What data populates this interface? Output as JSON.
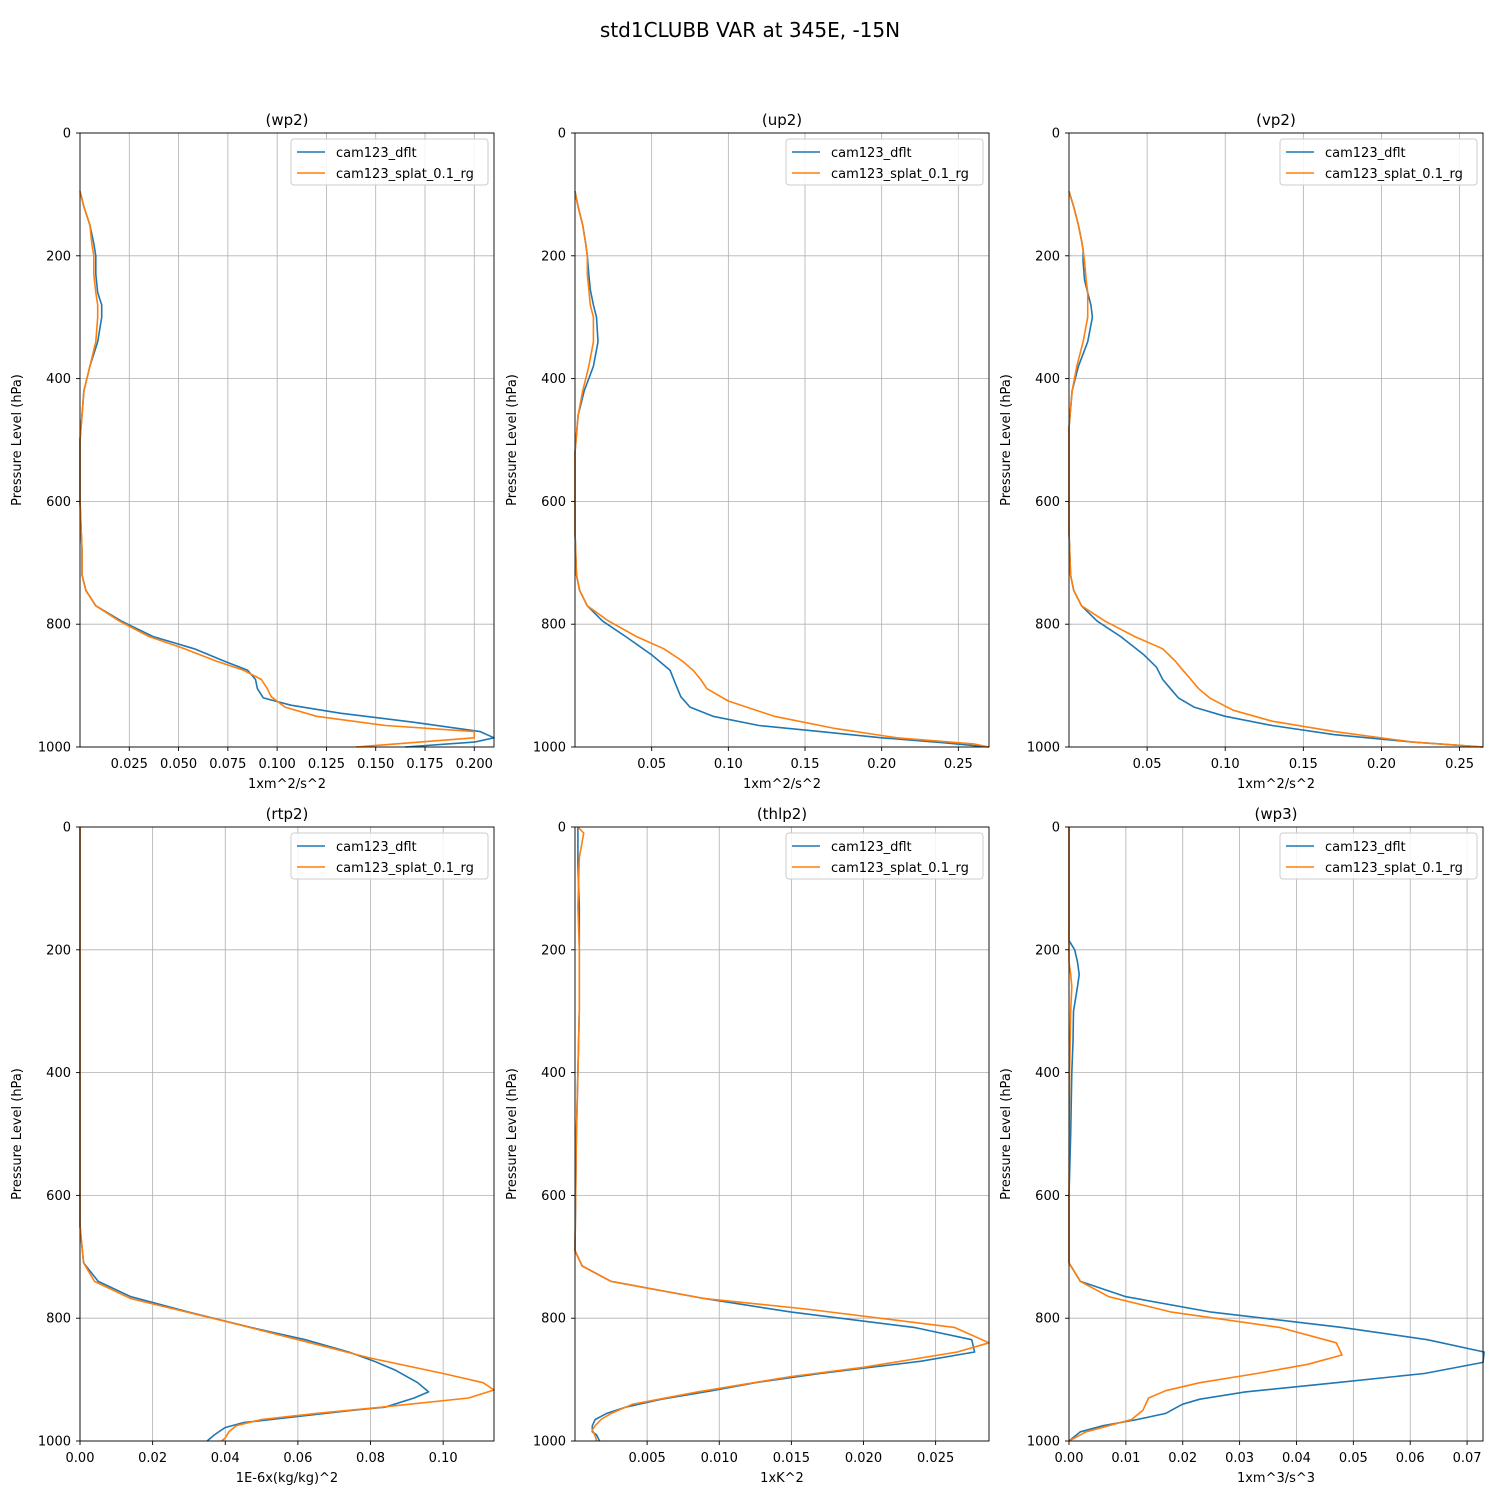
{
  "figure_title": "std1CLUBB VAR at 345E, -15N",
  "legend_labels": [
    "cam123_dflt",
    "cam123_splat_0.1_rg"
  ],
  "colors": {
    "cam123_dflt": "#1f77b4",
    "cam123_splat_0.1_rg": "#ff7f0e",
    "grid": "#b0b0b0"
  },
  "chart_data": [
    {
      "type": "line",
      "title": "(wp2)",
      "xlabel": "1xm^2/s^2",
      "ylabel": "Pressure Level (hPa)",
      "xlim": [
        0.0,
        0.21
      ],
      "ylim": [
        1000,
        0
      ],
      "grid": true,
      "legend": "upper right",
      "xticks": [
        0.025,
        0.05,
        0.075,
        0.1,
        0.125,
        0.15,
        0.175,
        0.2
      ],
      "xtick_labels": [
        "0.025",
        "0.050",
        "0.075",
        "0.100",
        "0.125",
        "0.150",
        "0.175",
        "0.200"
      ],
      "yticks": [
        0,
        200,
        400,
        600,
        800,
        1000
      ],
      "ytick_labels": [
        "0",
        "200",
        "400",
        "600",
        "800",
        "1000"
      ],
      "series": [
        {
          "name": "cam123_dflt",
          "x": [
            0.0,
            0.002,
            0.005,
            0.007,
            0.008,
            0.008,
            0.009,
            0.011,
            0.011,
            0.009,
            0.005,
            0.002,
            0.001,
            0.0,
            0.0,
            0.001,
            0.001,
            0.003,
            0.008,
            0.021,
            0.037,
            0.058,
            0.073,
            0.085,
            0.089,
            0.09,
            0.093,
            0.107,
            0.132,
            0.17,
            0.203,
            0.21,
            0.2,
            0.165
          ],
          "y": [
            95,
            120,
            150,
            180,
            200,
            230,
            260,
            280,
            300,
            340,
            380,
            420,
            460,
            500,
            600,
            680,
            720,
            745,
            770,
            795,
            820,
            840,
            860,
            875,
            890,
            905,
            920,
            932,
            945,
            960,
            975,
            985,
            992,
            1000
          ]
        },
        {
          "name": "cam123_splat_0.1_rg",
          "x": [
            0.0,
            0.002,
            0.005,
            0.006,
            0.007,
            0.007,
            0.008,
            0.009,
            0.009,
            0.008,
            0.005,
            0.002,
            0.001,
            0.0,
            0.0,
            0.001,
            0.001,
            0.003,
            0.008,
            0.02,
            0.035,
            0.053,
            0.069,
            0.083,
            0.092,
            0.095,
            0.097,
            0.104,
            0.12,
            0.155,
            0.2,
            0.2,
            0.14
          ],
          "y": [
            95,
            120,
            150,
            180,
            200,
            230,
            260,
            280,
            300,
            340,
            380,
            420,
            460,
            500,
            600,
            680,
            720,
            745,
            770,
            795,
            820,
            840,
            860,
            875,
            890,
            905,
            918,
            935,
            950,
            965,
            975,
            985,
            1000
          ]
        }
      ]
    },
    {
      "type": "line",
      "title": "(up2)",
      "xlabel": "1xm^2/s^2",
      "ylabel": "Pressure Level (hPa)",
      "xlim": [
        0.0,
        0.27
      ],
      "ylim": [
        1000,
        0
      ],
      "grid": true,
      "legend": "upper right",
      "xticks": [
        0.05,
        0.1,
        0.15,
        0.2,
        0.25
      ],
      "xtick_labels": [
        "0.05",
        "0.10",
        "0.15",
        "0.20",
        "0.25"
      ],
      "yticks": [
        0,
        200,
        400,
        600,
        800,
        1000
      ],
      "ytick_labels": [
        "0",
        "200",
        "400",
        "600",
        "800",
        "1000"
      ],
      "series": [
        {
          "name": "cam123_dflt",
          "x": [
            0.0,
            0.002,
            0.005,
            0.007,
            0.008,
            0.009,
            0.01,
            0.012,
            0.014,
            0.015,
            0.012,
            0.006,
            0.002,
            0.0,
            0.0,
            0.001,
            0.003,
            0.008,
            0.018,
            0.033,
            0.05,
            0.062,
            0.066,
            0.069,
            0.075,
            0.09,
            0.12,
            0.16,
            0.2,
            0.24,
            0.27
          ],
          "y": [
            95,
            120,
            150,
            180,
            200,
            230,
            255,
            280,
            300,
            340,
            380,
            420,
            460,
            520,
            650,
            720,
            745,
            770,
            795,
            820,
            850,
            875,
            900,
            918,
            935,
            950,
            965,
            975,
            985,
            993,
            1000
          ]
        },
        {
          "name": "cam123_splat_0.1_rg",
          "x": [
            0.0,
            0.002,
            0.005,
            0.007,
            0.008,
            0.008,
            0.009,
            0.01,
            0.012,
            0.012,
            0.009,
            0.005,
            0.002,
            0.0,
            0.0,
            0.001,
            0.003,
            0.008,
            0.022,
            0.04,
            0.058,
            0.07,
            0.077,
            0.082,
            0.086,
            0.1,
            0.13,
            0.17,
            0.21,
            0.26,
            0.27
          ],
          "y": [
            95,
            120,
            150,
            180,
            200,
            230,
            255,
            280,
            300,
            340,
            380,
            420,
            460,
            520,
            650,
            720,
            745,
            770,
            795,
            820,
            840,
            860,
            875,
            890,
            905,
            925,
            950,
            970,
            985,
            995,
            1000
          ]
        }
      ]
    },
    {
      "type": "line",
      "title": "(vp2)",
      "xlabel": "1xm^2/s^2",
      "ylabel": "Pressure Level (hPa)",
      "xlim": [
        0.0,
        0.265
      ],
      "ylim": [
        1000,
        0
      ],
      "grid": true,
      "legend": "upper right",
      "xticks": [
        0.05,
        0.1,
        0.15,
        0.2,
        0.25
      ],
      "xtick_labels": [
        "0.05",
        "0.10",
        "0.15",
        "0.20",
        "0.25"
      ],
      "yticks": [
        0,
        200,
        400,
        600,
        800,
        1000
      ],
      "ytick_labels": [
        "0",
        "200",
        "400",
        "600",
        "800",
        "1000"
      ],
      "series": [
        {
          "name": "cam123_dflt",
          "x": [
            0.0,
            0.003,
            0.006,
            0.008,
            0.009,
            0.009,
            0.01,
            0.012,
            0.014,
            0.015,
            0.012,
            0.006,
            0.002,
            0.0,
            0.0,
            0.001,
            0.003,
            0.008,
            0.018,
            0.033,
            0.048,
            0.056,
            0.06,
            0.065,
            0.07,
            0.08,
            0.1,
            0.13,
            0.17,
            0.22,
            0.265
          ],
          "y": [
            95,
            120,
            150,
            175,
            190,
            210,
            240,
            260,
            280,
            300,
            340,
            380,
            420,
            480,
            650,
            720,
            745,
            770,
            795,
            820,
            850,
            870,
            890,
            905,
            920,
            935,
            950,
            965,
            980,
            992,
            1000
          ]
        },
        {
          "name": "cam123_splat_0.1_rg",
          "x": [
            0.0,
            0.003,
            0.006,
            0.008,
            0.009,
            0.01,
            0.011,
            0.012,
            0.012,
            0.012,
            0.009,
            0.005,
            0.002,
            0.0,
            0.0,
            0.001,
            0.003,
            0.008,
            0.023,
            0.042,
            0.06,
            0.068,
            0.073,
            0.078,
            0.083,
            0.09,
            0.105,
            0.13,
            0.17,
            0.22,
            0.265
          ],
          "y": [
            95,
            120,
            150,
            175,
            190,
            210,
            240,
            260,
            280,
            300,
            340,
            380,
            420,
            480,
            650,
            720,
            745,
            770,
            795,
            820,
            840,
            860,
            875,
            890,
            905,
            920,
            940,
            958,
            975,
            992,
            1000
          ]
        }
      ]
    },
    {
      "type": "line",
      "title": "(rtp2)",
      "xlabel": "1E-6x(kg/kg)^2",
      "ylabel": "Pressure Level (hPa)",
      "xlim": [
        0.0,
        0.114
      ],
      "ylim": [
        1000,
        0
      ],
      "grid": true,
      "legend": "upper right",
      "xticks": [
        0.0,
        0.02,
        0.04,
        0.06,
        0.08,
        0.1
      ],
      "xtick_labels": [
        "0.00",
        "0.02",
        "0.04",
        "0.06",
        "0.08",
        "0.10"
      ],
      "yticks": [
        0,
        200,
        400,
        600,
        800,
        1000
      ],
      "ytick_labels": [
        "0",
        "200",
        "400",
        "600",
        "800",
        "1000"
      ],
      "series": [
        {
          "name": "cam123_dflt",
          "x": [
            0.0,
            0.0,
            0.001,
            0.005,
            0.014,
            0.03,
            0.047,
            0.062,
            0.074,
            0.081,
            0.087,
            0.093,
            0.096,
            0.092,
            0.084,
            0.075,
            0.06,
            0.045,
            0.04,
            0.039,
            0.037,
            0.035
          ],
          "y": [
            0,
            650,
            710,
            740,
            765,
            790,
            815,
            835,
            855,
            870,
            885,
            905,
            920,
            930,
            945,
            950,
            960,
            970,
            978,
            982,
            990,
            1000
          ]
        },
        {
          "name": "cam123_splat_0.1_rg",
          "x": [
            0.0,
            0.0,
            0.001,
            0.004,
            0.014,
            0.04,
            0.06,
            0.08,
            0.1,
            0.111,
            0.114,
            0.107,
            0.083,
            0.065,
            0.05,
            0.043,
            0.041,
            0.04,
            0.039
          ],
          "y": [
            0,
            650,
            710,
            740,
            768,
            805,
            835,
            865,
            890,
            905,
            917,
            930,
            945,
            955,
            965,
            975,
            985,
            995,
            1000
          ]
        }
      ]
    },
    {
      "type": "line",
      "title": "(thlp2)",
      "xlabel": "1xK^2",
      "ylabel": "Pressure Level (hPa)",
      "xlim": [
        0.0,
        0.0287
      ],
      "ylim": [
        1000,
        0
      ],
      "grid": true,
      "legend": "upper right",
      "xticks": [
        0.005,
        0.01,
        0.015,
        0.02,
        0.025
      ],
      "xtick_labels": [
        "0.005",
        "0.010",
        "0.015",
        "0.020",
        "0.025"
      ],
      "yticks": [
        0,
        200,
        400,
        600,
        800,
        1000
      ],
      "ytick_labels": [
        "0",
        "200",
        "400",
        "600",
        "800",
        "1000"
      ],
      "series": [
        {
          "name": "cam123_dflt",
          "x": [
            0.0002,
            0.0002,
            0.0003,
            0.0003,
            0.0003,
            0.0002,
            0.0001,
            0.0,
            0.0005,
            0.0025,
            0.009,
            0.015,
            0.0235,
            0.0275,
            0.0277,
            0.024,
            0.017,
            0.0125,
            0.0095,
            0.006,
            0.0035,
            0.0022,
            0.0014,
            0.0012,
            0.0012,
            0.0015,
            0.0017
          ],
          "y": [
            0,
            60,
            130,
            200,
            300,
            400,
            500,
            690,
            715,
            740,
            768,
            790,
            815,
            835,
            855,
            870,
            890,
            905,
            918,
            932,
            945,
            955,
            965,
            975,
            985,
            990,
            1000
          ]
        },
        {
          "name": "cam123_splat_0.1_rg",
          "x": [
            0.0002,
            0.0006,
            0.0003,
            0.0002,
            0.0003,
            0.0003,
            0.0002,
            0.0001,
            0.0,
            0.0005,
            0.0025,
            0.009,
            0.016,
            0.0263,
            0.0287,
            0.0265,
            0.02,
            0.015,
            0.0085,
            0.004,
            0.0025,
            0.0018,
            0.0014,
            0.0012,
            0.0014,
            0.0015
          ],
          "y": [
            0,
            10,
            50,
            130,
            200,
            300,
            400,
            500,
            690,
            715,
            740,
            768,
            785,
            815,
            840,
            855,
            880,
            895,
            920,
            940,
            955,
            965,
            975,
            982,
            992,
            1000
          ]
        }
      ]
    },
    {
      "type": "line",
      "title": "(wp3)",
      "xlabel": "1xm^3/s^3",
      "ylabel": "Pressure Level (hPa)",
      "xlim": [
        0.0,
        0.0728
      ],
      "ylim": [
        1000,
        0
      ],
      "grid": true,
      "legend": "upper right",
      "xticks": [
        0.0,
        0.01,
        0.02,
        0.03,
        0.04,
        0.05,
        0.06,
        0.07
      ],
      "xtick_labels": [
        "0.00",
        "0.01",
        "0.02",
        "0.03",
        "0.04",
        "0.05",
        "0.06",
        "0.07"
      ],
      "yticks": [
        0,
        200,
        400,
        600,
        800,
        1000
      ],
      "ytick_labels": [
        "0",
        "200",
        "400",
        "600",
        "800",
        "1000"
      ],
      "series": [
        {
          "name": "cam123_dflt",
          "x": [
            0.0,
            0.0,
            0.0,
            0.001,
            0.0015,
            0.0018,
            0.0015,
            0.0008,
            0.0007,
            0.0005,
            0.0003,
            0.0,
            0.0,
            0.002,
            0.01,
            0.025,
            0.048,
            0.063,
            0.073,
            0.0728,
            0.0625,
            0.047,
            0.031,
            0.023,
            0.02,
            0.019,
            0.017,
            0.012,
            0.006,
            0.002,
            0.0
          ],
          "y": [
            0,
            100,
            185,
            200,
            220,
            240,
            260,
            300,
            350,
            400,
            500,
            600,
            710,
            740,
            765,
            790,
            815,
            835,
            855,
            872,
            890,
            905,
            920,
            932,
            940,
            945,
            955,
            965,
            975,
            985,
            1000
          ]
        },
        {
          "name": "cam123_splat_0.1_rg",
          "x": [
            0.0,
            0.0,
            0.0,
            0.0003,
            0.0005,
            0.0003,
            0.0001,
            0.0,
            0.0,
            0.002,
            0.007,
            0.018,
            0.037,
            0.047,
            0.048,
            0.042,
            0.033,
            0.023,
            0.017,
            0.014,
            0.013,
            0.011,
            0.007,
            0.003,
            0.0
          ],
          "y": [
            0,
            200,
            220,
            240,
            260,
            300,
            400,
            600,
            710,
            740,
            765,
            790,
            815,
            840,
            860,
            875,
            890,
            905,
            918,
            930,
            950,
            965,
            975,
            985,
            1000
          ]
        }
      ]
    }
  ]
}
